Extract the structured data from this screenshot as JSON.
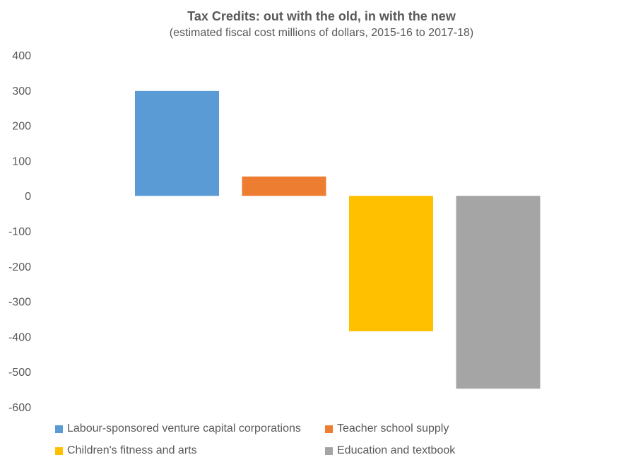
{
  "chart_data": {
    "type": "bar",
    "title": "Tax Credits: out with the old, in with the new",
    "subtitle": "(estimated fiscal cost millions of dollars, 2015-16 to 2017-18)",
    "xlabel": "",
    "ylabel": "",
    "ylim": [
      -600,
      400
    ],
    "yticks": [
      "400",
      "300",
      "200",
      "100",
      "0",
      "-100",
      "-200",
      "-300",
      "-400",
      "-500",
      "-600"
    ],
    "grid": false,
    "legend_position": "bottom",
    "series": [
      {
        "name": "Labour-sponsored venture capital corporations",
        "value": 298,
        "color": "#5B9BD5"
      },
      {
        "name": "Teacher school supply",
        "value": 55,
        "color": "#ED7D31"
      },
      {
        "name": "Children's fitness and arts",
        "value": -385,
        "color": "#FFC000"
      },
      {
        "name": "Education and textbook",
        "value": -548,
        "color": "#A5A5A5"
      }
    ]
  }
}
